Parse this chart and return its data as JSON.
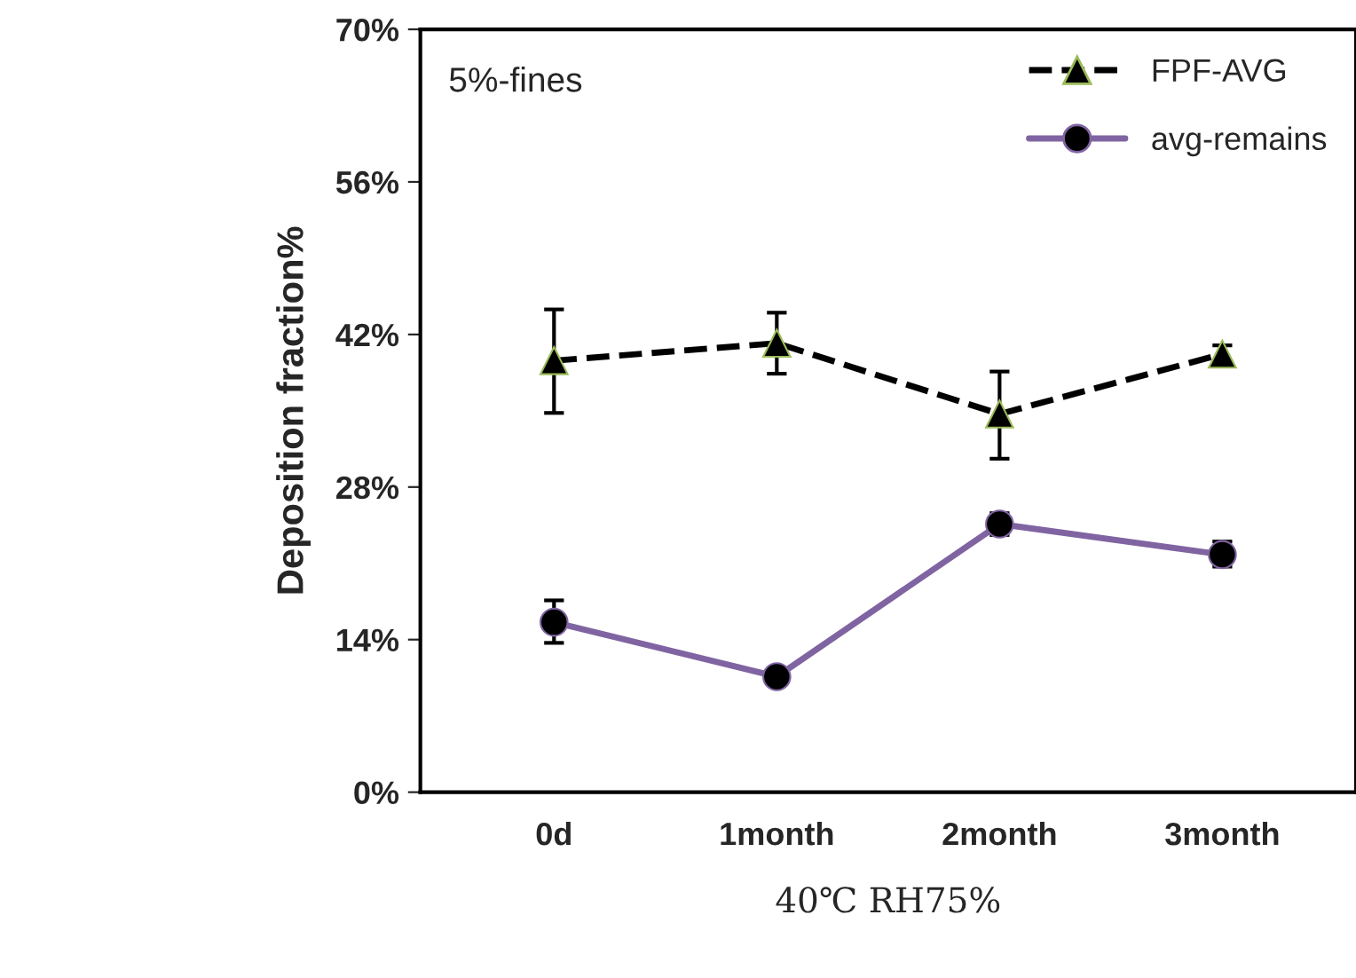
{
  "chart_data": {
    "type": "line",
    "xlabel": "40℃ RH75%",
    "ylabel": "Deposition fraction%",
    "categories": [
      "0d",
      "1month",
      "2month",
      "3month"
    ],
    "series": [
      {
        "name": "FPF-AVG",
        "color": "#000000",
        "marker": "triangle",
        "line_style": "dashed",
        "values": [
          39.6,
          41.2,
          34.7,
          40.2
        ],
        "errors": [
          [
            34.8,
            44.3
          ],
          [
            38.4,
            44.0
          ],
          [
            30.6,
            38.6
          ],
          [
            39.4,
            41.0
          ]
        ]
      },
      {
        "name": "avg-remains",
        "color": "#8064a2",
        "marker": "circle",
        "line_style": "solid",
        "values": [
          15.6,
          10.6,
          24.6,
          21.8
        ],
        "errors": [
          [
            13.7,
            17.6
          ],
          [
            9.9,
            11.2
          ],
          [
            23.6,
            25.6
          ],
          [
            20.7,
            23.0
          ]
        ]
      }
    ],
    "ylim": [
      0,
      70
    ],
    "yticks": [
      {
        "value": 0,
        "label": "0%"
      },
      {
        "value": 14,
        "label": "14%"
      },
      {
        "value": 28,
        "label": "28%"
      },
      {
        "value": 42,
        "label": "42%"
      },
      {
        "value": 56,
        "label": "56%"
      },
      {
        "value": 70,
        "label": "70%"
      }
    ],
    "annotations": [
      "5%-fines"
    ],
    "legend": "top right",
    "grid": false
  }
}
